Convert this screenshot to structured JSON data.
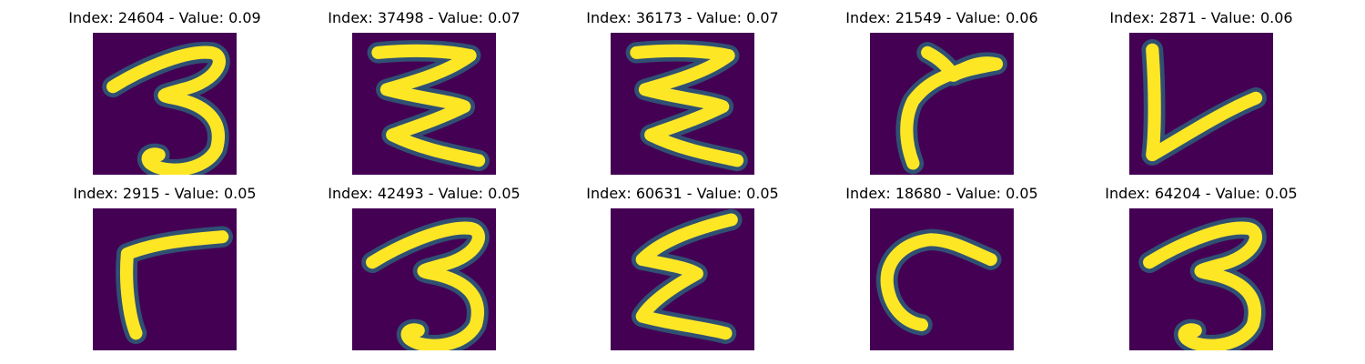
{
  "chart_data": {
    "type": "heatmap",
    "layout": "grid of digit images, 2 rows x 5 columns",
    "colormap": "viridis",
    "background_color": "#440154",
    "stroke_color": "#fde725",
    "edge_color": "#21918c",
    "panels": [
      {
        "index": 24604,
        "value": 0.09,
        "title": "Index: 24604 - Value: 0.09",
        "glyph": "3"
      },
      {
        "index": 37498,
        "value": 0.07,
        "title": "Index: 37498 - Value: 0.07",
        "glyph": "zigzag"
      },
      {
        "index": 36173,
        "value": 0.07,
        "title": "Index: 36173 - Value: 0.07",
        "glyph": "zigzag"
      },
      {
        "index": 21549,
        "value": 0.06,
        "title": "Index: 21549 - Value: 0.06",
        "glyph": "hook"
      },
      {
        "index": 2871,
        "value": 0.06,
        "title": "Index: 2871 - Value: 0.06",
        "glyph": "check"
      },
      {
        "index": 2915,
        "value": 0.05,
        "title": "Index: 2915 - Value: 0.05",
        "glyph": "corner"
      },
      {
        "index": 42493,
        "value": 0.05,
        "title": "Index: 42493 - Value: 0.05",
        "glyph": "3"
      },
      {
        "index": 60631,
        "value": 0.05,
        "title": "Index: 60631 - Value: 0.05",
        "glyph": "sigma"
      },
      {
        "index": 18680,
        "value": 0.05,
        "title": "Index: 18680 - Value: 0.05",
        "glyph": "curve"
      },
      {
        "index": 64204,
        "value": 0.05,
        "title": "Index: 64204 - Value: 0.05",
        "glyph": "3"
      }
    ]
  }
}
